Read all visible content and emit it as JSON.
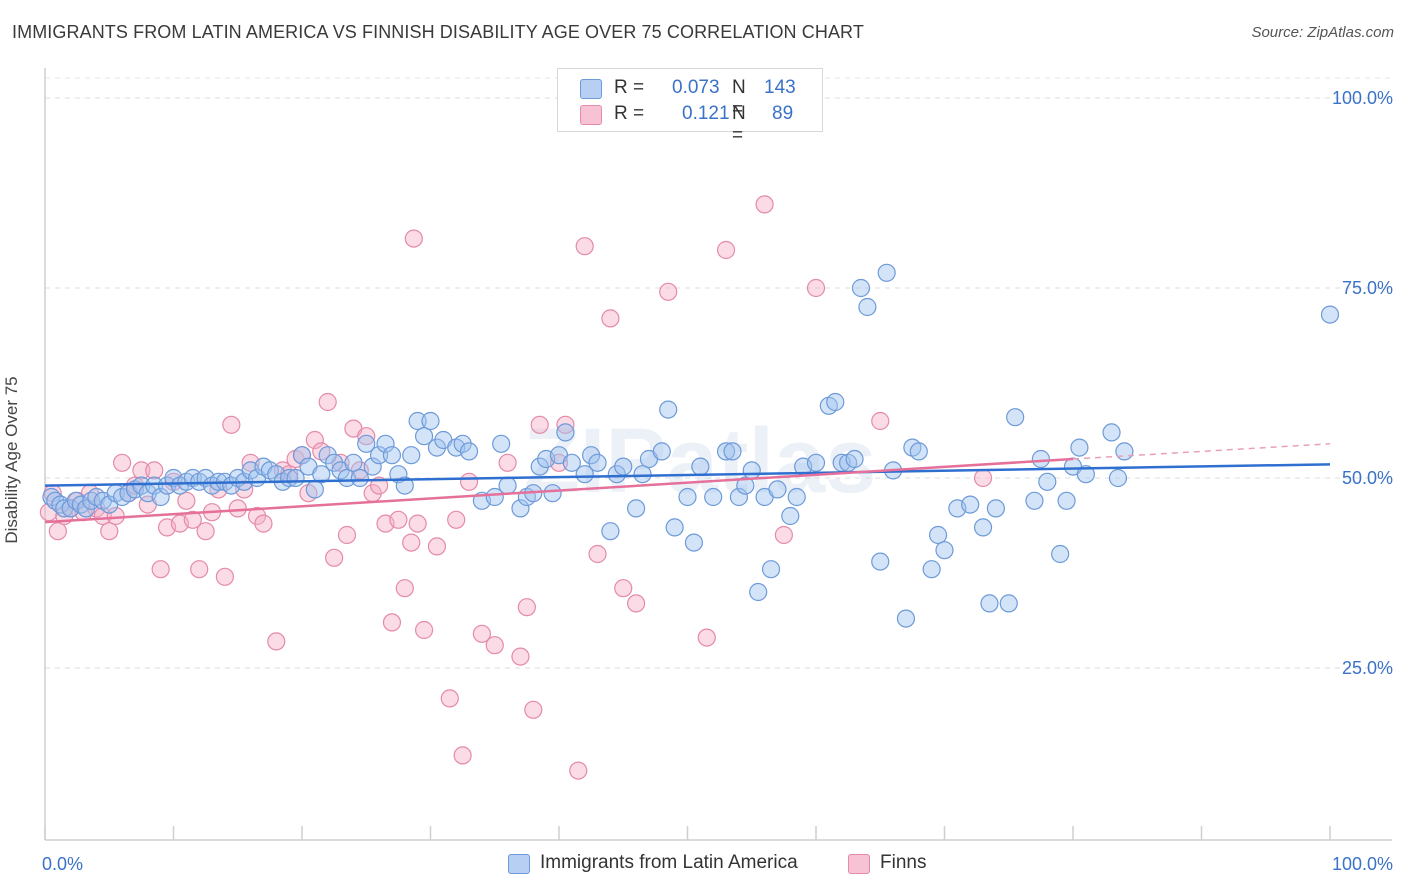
{
  "title": "IMMIGRANTS FROM LATIN AMERICA VS FINNISH DISABILITY AGE OVER 75 CORRELATION CHART",
  "source": "Source: ZipAtlas.com",
  "watermark": "ZIPatlas",
  "legend_top": {
    "rows": [
      {
        "r_label": "R =",
        "r_value": "0.073",
        "n_label": "N =",
        "n_value": "143",
        "color": "#b7cff2",
        "border": "#6d9ad8"
      },
      {
        "r_label": "R =",
        "r_value": "0.121",
        "n_label": "N =",
        "n_value": "89",
        "color": "#f7c3d4",
        "border": "#e58aa8"
      }
    ]
  },
  "legend_bottom": [
    {
      "label": "Immigrants from Latin America",
      "color": "#b7cff2",
      "border": "#6d9ad8"
    },
    {
      "label": "Finns",
      "color": "#f7c3d4",
      "border": "#e58aa8"
    }
  ],
  "chart_data": {
    "type": "scatter",
    "title": "IMMIGRANTS FROM LATIN AMERICA VS FINNISH DISABILITY AGE OVER 75 CORRELATION CHART",
    "xlabel": "",
    "ylabel": "Disability Age Over 75",
    "xlim": [
      0,
      100
    ],
    "ylim": [
      0,
      100
    ],
    "x_tick_labels": [
      "0.0%",
      "100.0%"
    ],
    "y_tick_labels": [
      "25.0%",
      "50.0%",
      "75.0%",
      "100.0%"
    ],
    "y_ticks": [
      25,
      50,
      75,
      100
    ],
    "grid": true,
    "series": [
      {
        "name": "Immigrants from Latin America",
        "color": "#6d9ad8",
        "fill": "rgba(160,195,240,0.45)",
        "trend": {
          "x": [
            0,
            100
          ],
          "y": [
            49.0,
            51.8
          ]
        },
        "points": [
          [
            0.5,
            47.5
          ],
          [
            0.8,
            47
          ],
          [
            1.2,
            46.5
          ],
          [
            1.5,
            46
          ],
          [
            2,
            46
          ],
          [
            2.4,
            47
          ],
          [
            2.8,
            46.5
          ],
          [
            3.2,
            46
          ],
          [
            3.6,
            47
          ],
          [
            4,
            47.5
          ],
          [
            4.5,
            47
          ],
          [
            5,
            46.5
          ],
          [
            5.5,
            48
          ],
          [
            6,
            47.5
          ],
          [
            6.5,
            48
          ],
          [
            7,
            48.5
          ],
          [
            7.5,
            49
          ],
          [
            8,
            48
          ],
          [
            8.5,
            49
          ],
          [
            9,
            47.5
          ],
          [
            9.5,
            49
          ],
          [
            10,
            50
          ],
          [
            10.5,
            49
          ],
          [
            11,
            49.5
          ],
          [
            11.5,
            50
          ],
          [
            12,
            49.5
          ],
          [
            12.5,
            50
          ],
          [
            13,
            49
          ],
          [
            13.5,
            49.5
          ],
          [
            14,
            49.5
          ],
          [
            14.5,
            49
          ],
          [
            15,
            50
          ],
          [
            15.5,
            49.5
          ],
          [
            16,
            51
          ],
          [
            16.5,
            50
          ],
          [
            17,
            51.5
          ],
          [
            17.5,
            51
          ],
          [
            18,
            50.5
          ],
          [
            18.5,
            49.5
          ],
          [
            19,
            50
          ],
          [
            19.5,
            50
          ],
          [
            20,
            53
          ],
          [
            20.5,
            51.5
          ],
          [
            21,
            48.5
          ],
          [
            21.5,
            50.5
          ],
          [
            22,
            53
          ],
          [
            22.5,
            52
          ],
          [
            23,
            51
          ],
          [
            23.5,
            50
          ],
          [
            24,
            52
          ],
          [
            24.5,
            50
          ],
          [
            25,
            54.5
          ],
          [
            25.5,
            51.5
          ],
          [
            26,
            53
          ],
          [
            26.5,
            54.5
          ],
          [
            27,
            53
          ],
          [
            27.5,
            50.5
          ],
          [
            28,
            49
          ],
          [
            28.5,
            53
          ],
          [
            29,
            57.5
          ],
          [
            29.5,
            55.5
          ],
          [
            30,
            57.5
          ],
          [
            30.5,
            54
          ],
          [
            31,
            55
          ],
          [
            32,
            54
          ],
          [
            32.5,
            54.5
          ],
          [
            33,
            53.5
          ],
          [
            34,
            47
          ],
          [
            35,
            47.5
          ],
          [
            35.5,
            54.5
          ],
          [
            36,
            49
          ],
          [
            37,
            46
          ],
          [
            37.5,
            47.5
          ],
          [
            38,
            48
          ],
          [
            38.5,
            51.5
          ],
          [
            39,
            52.5
          ],
          [
            39.5,
            48
          ],
          [
            40,
            53
          ],
          [
            40.5,
            56
          ],
          [
            41,
            52
          ],
          [
            42,
            50.5
          ],
          [
            42.5,
            53
          ],
          [
            43,
            52
          ],
          [
            44,
            43
          ],
          [
            44.5,
            50.5
          ],
          [
            45,
            51.5
          ],
          [
            46,
            46
          ],
          [
            46.5,
            50.5
          ],
          [
            47,
            52.5
          ],
          [
            48,
            53.5
          ],
          [
            48.5,
            59
          ],
          [
            49,
            43.5
          ],
          [
            50,
            47.5
          ],
          [
            50.5,
            41.5
          ],
          [
            51,
            51.5
          ],
          [
            52,
            47.5
          ],
          [
            53,
            53.5
          ],
          [
            53.5,
            53.5
          ],
          [
            54,
            47.5
          ],
          [
            54.5,
            49
          ],
          [
            55,
            51
          ],
          [
            55.5,
            35
          ],
          [
            56,
            47.5
          ],
          [
            56.5,
            38
          ],
          [
            57,
            48.5
          ],
          [
            58,
            45
          ],
          [
            58.5,
            47.5
          ],
          [
            59,
            51.5
          ],
          [
            60,
            52
          ],
          [
            61,
            59.5
          ],
          [
            61.5,
            60
          ],
          [
            62,
            52
          ],
          [
            62.5,
            52
          ],
          [
            63,
            52.5
          ],
          [
            63.5,
            75
          ],
          [
            64,
            72.5
          ],
          [
            65,
            39
          ],
          [
            65.5,
            77
          ],
          [
            66,
            51
          ],
          [
            67,
            31.5
          ],
          [
            67.5,
            54
          ],
          [
            68,
            53.5
          ],
          [
            69,
            38
          ],
          [
            69.5,
            42.5
          ],
          [
            70,
            40.5
          ],
          [
            71,
            46
          ],
          [
            72,
            46.5
          ],
          [
            73,
            43.5
          ],
          [
            73.5,
            33.5
          ],
          [
            74,
            46
          ],
          [
            75,
            33.5
          ],
          [
            75.5,
            58
          ],
          [
            77,
            47
          ],
          [
            77.5,
            52.5
          ],
          [
            78,
            49.5
          ],
          [
            79,
            40
          ],
          [
            79.5,
            47
          ],
          [
            80,
            51.5
          ],
          [
            80.5,
            54
          ],
          [
            81,
            50.5
          ],
          [
            83,
            56
          ],
          [
            83.5,
            50
          ],
          [
            84,
            53.5
          ],
          [
            100,
            71.5
          ]
        ]
      },
      {
        "name": "Finns",
        "color": "#e58aa8",
        "fill": "rgba(245,175,200,0.45)",
        "trend": {
          "x": [
            0,
            80
          ],
          "y": [
            44.2,
            52.5
          ]
        },
        "trend_ext": {
          "x": [
            80,
            100
          ],
          "y": [
            52.5,
            54.5
          ]
        },
        "points": [
          [
            0.3,
            45.5
          ],
          [
            0.6,
            48
          ],
          [
            1,
            43
          ],
          [
            1.5,
            45
          ],
          [
            2,
            46
          ],
          [
            2.5,
            47
          ],
          [
            3,
            45.5
          ],
          [
            3.5,
            48
          ],
          [
            4,
            46
          ],
          [
            4.5,
            45
          ],
          [
            5,
            43
          ],
          [
            5.5,
            45
          ],
          [
            6,
            52
          ],
          [
            6.5,
            48
          ],
          [
            7,
            49
          ],
          [
            7.5,
            51
          ],
          [
            8,
            46.5
          ],
          [
            8.5,
            51
          ],
          [
            9,
            38
          ],
          [
            9.5,
            43.5
          ],
          [
            10,
            49.5
          ],
          [
            10.5,
            44
          ],
          [
            11,
            47
          ],
          [
            11.5,
            44.5
          ],
          [
            12,
            38
          ],
          [
            12.5,
            43
          ],
          [
            13,
            45.5
          ],
          [
            13.5,
            48.5
          ],
          [
            14,
            37
          ],
          [
            14.5,
            57
          ],
          [
            15,
            46
          ],
          [
            15.5,
            48.5
          ],
          [
            16,
            52
          ],
          [
            16.5,
            45
          ],
          [
            17,
            44
          ],
          [
            18,
            28.5
          ],
          [
            18.5,
            51
          ],
          [
            19,
            50.5
          ],
          [
            19.5,
            52.5
          ],
          [
            20,
            53
          ],
          [
            20.5,
            48
          ],
          [
            21,
            55
          ],
          [
            21.5,
            53.5
          ],
          [
            22,
            60
          ],
          [
            22.5,
            39.5
          ],
          [
            23,
            52
          ],
          [
            23.5,
            42.5
          ],
          [
            24,
            56.5
          ],
          [
            24.5,
            51
          ],
          [
            25,
            55.5
          ],
          [
            25.5,
            48
          ],
          [
            26,
            49
          ],
          [
            26.5,
            44
          ],
          [
            27,
            31
          ],
          [
            27.5,
            44.5
          ],
          [
            28,
            35.5
          ],
          [
            28.5,
            41.5
          ],
          [
            28.7,
            81.5
          ],
          [
            29,
            44
          ],
          [
            29.5,
            30
          ],
          [
            30.5,
            41
          ],
          [
            31.5,
            21
          ],
          [
            32,
            44.5
          ],
          [
            32.5,
            13.5
          ],
          [
            33,
            49.5
          ],
          [
            34,
            29.5
          ],
          [
            35,
            28
          ],
          [
            36,
            52
          ],
          [
            37,
            26.5
          ],
          [
            37.5,
            33
          ],
          [
            38,
            19.5
          ],
          [
            38.5,
            57
          ],
          [
            40,
            52
          ],
          [
            40.5,
            57
          ],
          [
            41.5,
            11.5
          ],
          [
            42,
            80.5
          ],
          [
            43,
            40
          ],
          [
            44,
            71
          ],
          [
            45,
            35.5
          ],
          [
            46,
            33.5
          ],
          [
            48.5,
            74.5
          ],
          [
            51.5,
            29
          ],
          [
            53,
            80
          ],
          [
            56,
            86
          ],
          [
            57.5,
            42.5
          ],
          [
            60,
            75
          ],
          [
            65,
            57.5
          ],
          [
            73,
            50
          ]
        ]
      }
    ]
  }
}
